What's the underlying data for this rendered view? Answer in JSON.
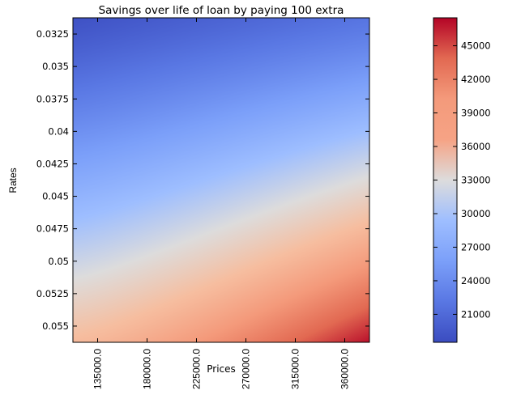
{
  "chart_data": {
    "type": "heatmap",
    "title": "Savings over life of loan by paying 100 extra",
    "xlabel": "Prices",
    "ylabel": "Rates",
    "x_ticks": [
      "135000.0",
      "180000.0",
      "225000.0",
      "270000.0",
      "315000.0",
      "360000.0"
    ],
    "y_ticks": [
      "0.0325",
      "0.035",
      "0.0375",
      "0.04",
      "0.0425",
      "0.045",
      "0.0475",
      "0.05",
      "0.0525",
      "0.055"
    ],
    "colorbar": {
      "colormap": "coolwarm",
      "vmin": 18500,
      "vmax": 47500,
      "ticks": [
        21000,
        24000,
        27000,
        30000,
        33000,
        36000,
        39000,
        42000,
        45000
      ]
    },
    "values_approx": {
      "note_corners": "values increase toward high price and high rate",
      "min_rate_min_price": 19000,
      "min_rate_max_price": 22000,
      "max_rate_min_price": 37000,
      "max_rate_max_price": 47000
    }
  }
}
